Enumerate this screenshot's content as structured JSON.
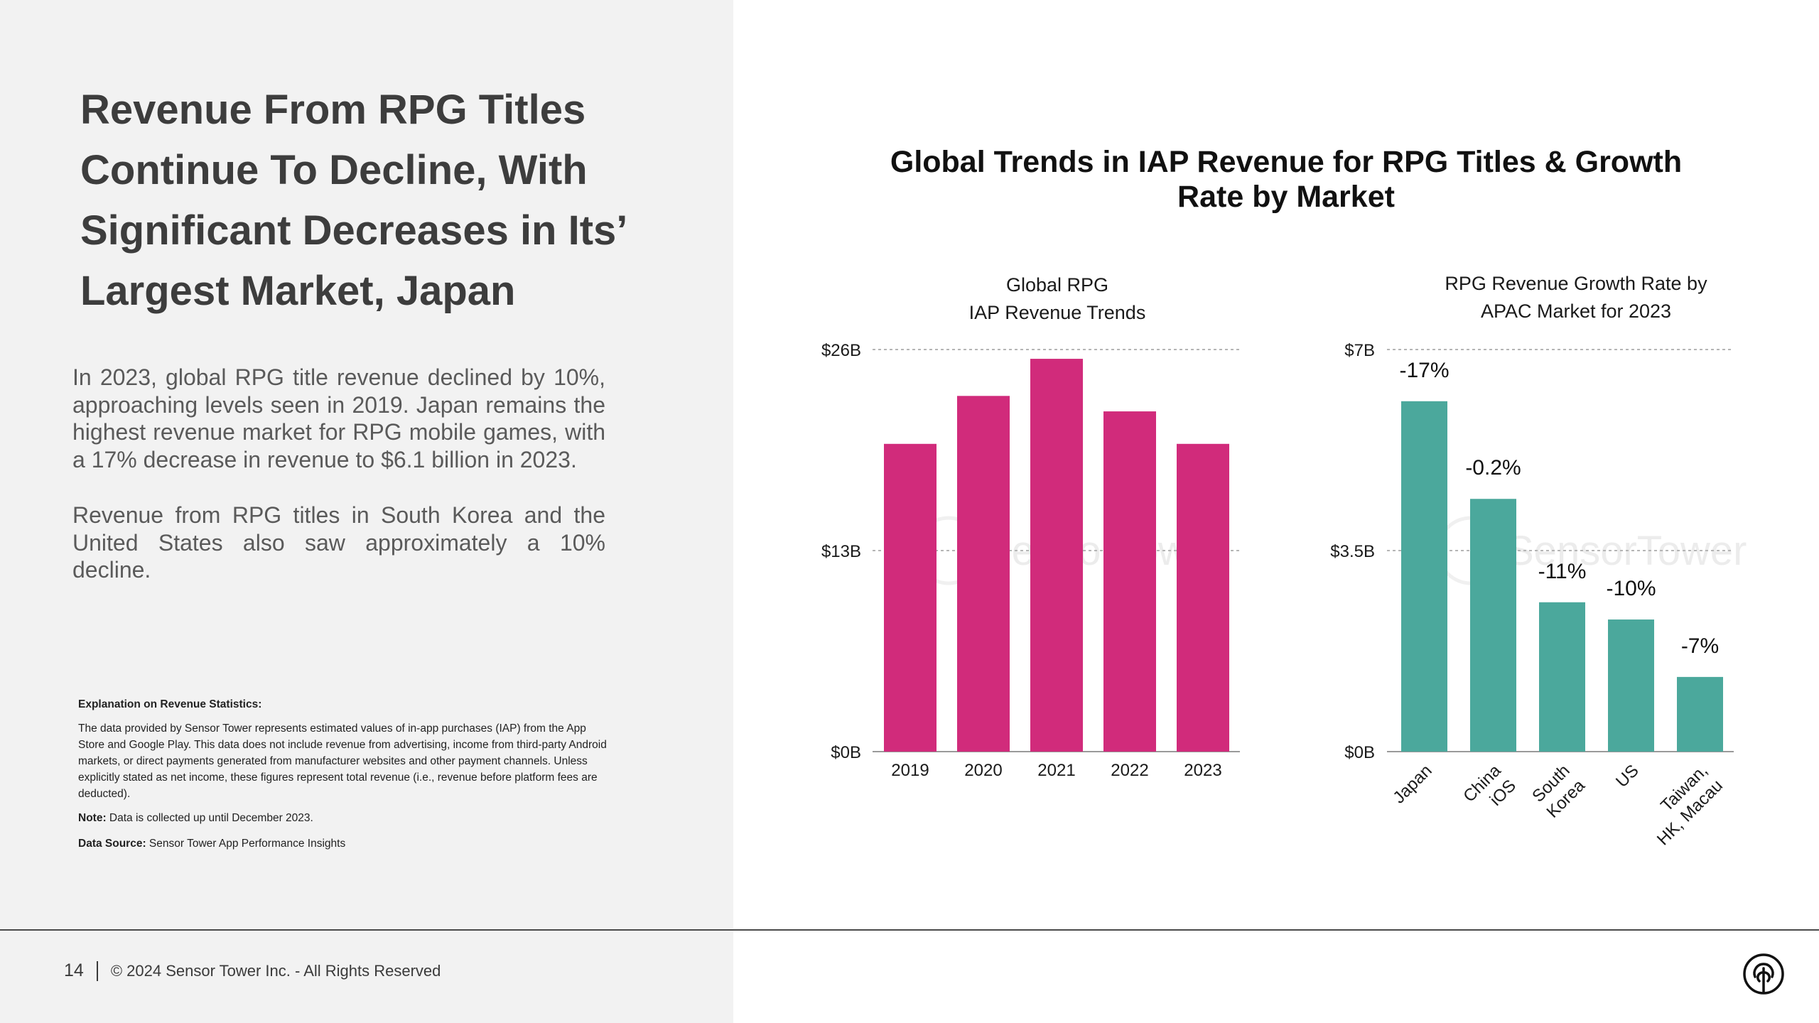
{
  "headline": "Revenue From RPG Titles Continue To Decline, With Significant Decreases in Its’ Largest Market, Japan",
  "body": [
    "In 2023, global RPG title revenue declined by 10%, approaching levels seen in 2019. Japan remains the highest revenue market for RPG mobile games, with a 17% decrease in revenue to $6.1 billion in 2023.",
    "Revenue from RPG titles in South Korea and the United States also saw approximately a 10% decline."
  ],
  "explanation": {
    "title": "Explanation on Revenue Statistics:",
    "text": "The data provided by Sensor Tower represents estimated values of in-app purchases (IAP) from the App Store and Google Play. This data does not include revenue from advertising, income from third-party Android markets, or direct payments generated from manufacturer websites and other payment channels. Unless explicitly stated as net income, these figures represent total revenue (i.e., revenue before platform fees are deducted).",
    "note_label": "Note:",
    "note": " Data is collected up until December 2023.",
    "source_label": "Data Source:",
    "source": " Sensor Tower App Performance Insights"
  },
  "footer": {
    "page": "14",
    "copyright": "© 2024 Sensor Tower Inc. - All Rights Reserved"
  },
  "watermark": "SensorTower",
  "colors": {
    "magenta": "#d12b7b",
    "teal": "#4ba89c"
  },
  "chart_title": "Global Trends in IAP Revenue for RPG Titles & Growth Rate by Market",
  "chart_data": [
    {
      "type": "bar",
      "title": "Global RPG IAP Revenue Trends",
      "title_lines": [
        "Global RPG",
        "IAP Revenue Trends"
      ],
      "categories": [
        "2019",
        "2020",
        "2021",
        "2022",
        "2023"
      ],
      "values": [
        19.9,
        23.0,
        25.4,
        22.0,
        19.9
      ],
      "unit": "$B",
      "ylim": [
        0,
        26
      ],
      "yticks": [
        0,
        13,
        26
      ],
      "ytick_labels": [
        "$0B",
        "$13B",
        "$26B"
      ],
      "grid": true,
      "color": "#d12b7b"
    },
    {
      "type": "bar",
      "title": "RPG Revenue Growth Rate by APAC Market for 2023",
      "title_lines": [
        "RPG Revenue Growth Rate by",
        "APAC Market for 2023"
      ],
      "categories": [
        [
          "Japan"
        ],
        [
          "China",
          "iOS"
        ],
        [
          "South",
          "Korea"
        ],
        [
          "US"
        ],
        [
          "Taiwan,",
          "HK, Macau"
        ]
      ],
      "values": [
        6.1,
        4.4,
        2.6,
        2.3,
        1.3
      ],
      "data_labels": [
        "-17%",
        "-0.2%",
        "-11%",
        "-10%",
        "-7%"
      ],
      "unit": "$B",
      "ylim": [
        0,
        7
      ],
      "yticks": [
        0,
        3.5,
        7
      ],
      "ytick_labels": [
        "$0B",
        "$3.5B",
        "$7B"
      ],
      "grid": true,
      "color": "#4ba89c"
    }
  ]
}
